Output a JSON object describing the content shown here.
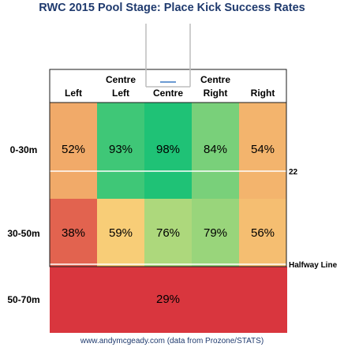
{
  "chart_data": {
    "type": "heatmap",
    "title": "RWC 2015 Pool Stage: Place Kick Success Rates",
    "columns": [
      [
        "Left"
      ],
      [
        "Centre",
        "Left"
      ],
      [
        "Centre"
      ],
      [
        "Centre",
        "Right"
      ],
      [
        "Right"
      ]
    ],
    "rows": [
      {
        "label": "0-30m",
        "values": [
          52,
          93,
          98,
          84,
          54
        ]
      },
      {
        "label": "30-50m",
        "values": [
          38,
          59,
          76,
          79,
          56
        ]
      },
      {
        "label": "50-70m",
        "values": [
          29
        ],
        "merged": true
      }
    ],
    "unit": "%",
    "field_lines": [
      "22",
      "Halfway Line"
    ],
    "colors": {
      "low": "#d9363e",
      "mid": "#fde47f",
      "high": "#1fc276",
      "grid": "#1a1a1a",
      "posts": "#bdbdbd"
    }
  },
  "footer": "www.andymcgeady.com (data from Prozone/STATS)"
}
